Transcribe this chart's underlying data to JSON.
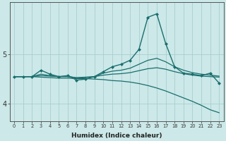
{
  "xlabel": "Humidex (Indice chaleur)",
  "background_color": "#cce8e8",
  "grid_color": "#aacece",
  "line_color": "#1a6e6e",
  "xlim": [
    -0.5,
    23.5
  ],
  "ylim": [
    3.65,
    6.05
  ],
  "yticks": [
    4,
    5
  ],
  "xticks": [
    0,
    1,
    2,
    3,
    4,
    5,
    6,
    7,
    8,
    9,
    10,
    11,
    12,
    13,
    14,
    15,
    16,
    17,
    18,
    19,
    20,
    21,
    22,
    23
  ],
  "series": [
    {
      "x": [
        0,
        1,
        2,
        3,
        4,
        5,
        6,
        7,
        8,
        9,
        10,
        11,
        12,
        13,
        14,
        15,
        16,
        17,
        18,
        19,
        20,
        21,
        22,
        23
      ],
      "y": [
        4.55,
        4.55,
        4.55,
        4.68,
        4.6,
        4.55,
        4.57,
        4.48,
        4.5,
        4.55,
        4.65,
        4.75,
        4.8,
        4.88,
        5.1,
        5.75,
        5.82,
        5.22,
        4.75,
        4.62,
        4.6,
        4.57,
        4.62,
        4.42
      ],
      "marker": "D",
      "markersize": 2.0,
      "linewidth": 1.0,
      "has_marker": true
    },
    {
      "x": [
        0,
        1,
        2,
        3,
        4,
        5,
        6,
        7,
        8,
        9,
        10,
        11,
        12,
        13,
        14,
        15,
        16,
        17,
        18,
        19,
        20,
        21,
        22,
        23
      ],
      "y": [
        4.55,
        4.55,
        4.55,
        4.6,
        4.57,
        4.55,
        4.56,
        4.52,
        4.53,
        4.55,
        4.62,
        4.66,
        4.68,
        4.72,
        4.8,
        4.88,
        4.92,
        4.85,
        4.75,
        4.68,
        4.63,
        4.6,
        4.58,
        4.56
      ],
      "marker": null,
      "markersize": 0,
      "linewidth": 0.9,
      "has_marker": false
    },
    {
      "x": [
        0,
        1,
        2,
        3,
        4,
        5,
        6,
        7,
        8,
        9,
        10,
        11,
        12,
        13,
        14,
        15,
        16,
        17,
        18,
        19,
        20,
        21,
        22,
        23
      ],
      "y": [
        4.55,
        4.55,
        4.55,
        4.57,
        4.56,
        4.55,
        4.55,
        4.53,
        4.54,
        4.55,
        4.58,
        4.6,
        4.61,
        4.63,
        4.67,
        4.71,
        4.73,
        4.7,
        4.65,
        4.61,
        4.58,
        4.56,
        4.55,
        4.54
      ],
      "marker": null,
      "markersize": 0,
      "linewidth": 0.9,
      "has_marker": false
    },
    {
      "x": [
        0,
        1,
        2,
        3,
        4,
        5,
        6,
        7,
        8,
        9,
        10,
        11,
        12,
        13,
        14,
        15,
        16,
        17,
        18,
        19,
        20,
        21,
        22,
        23
      ],
      "y": [
        4.55,
        4.55,
        4.55,
        4.54,
        4.53,
        4.52,
        4.52,
        4.51,
        4.51,
        4.5,
        4.49,
        4.47,
        4.46,
        4.44,
        4.41,
        4.37,
        4.32,
        4.26,
        4.19,
        4.12,
        4.05,
        3.97,
        3.88,
        3.82
      ],
      "marker": null,
      "markersize": 0,
      "linewidth": 0.9,
      "has_marker": false
    }
  ]
}
